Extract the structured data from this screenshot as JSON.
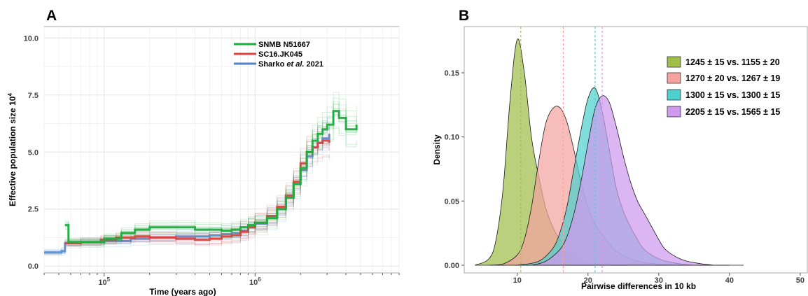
{
  "chart_data": [
    {
      "panel_label": "A",
      "type": "line",
      "xlabel": "Time (years ago)",
      "ylabel": "Effective population size 10",
      "ylabel_sup": "4",
      "xscale": "log",
      "xlim": [
        40000,
        9000000
      ],
      "ylim": [
        -0.3,
        10.5
      ],
      "x_ticks": [
        {
          "value": 100000,
          "base": "10",
          "exp": "5"
        },
        {
          "value": 1000000,
          "base": "10",
          "exp": "6"
        }
      ],
      "y_ticks": [
        "0.0",
        "2.5",
        "5.0",
        "7.5",
        "10.0"
      ],
      "y_tick_values": [
        0,
        2.5,
        5,
        7.5,
        10
      ],
      "grid": true,
      "legend_position": "top-center",
      "series": [
        {
          "name": "SNMB N51667",
          "color": "#1aae3e",
          "x": [
            55000,
            58000,
            95000,
            100000,
            130000,
            160000,
            200000,
            280000,
            400000,
            600000,
            700000,
            800000,
            900000,
            1000000,
            1200000,
            1400000,
            1600000,
            1800000,
            2000000,
            2200000,
            2400000,
            2600000,
            2800000,
            3000000,
            3300000,
            3600000,
            4000000,
            4700000
          ],
          "y": [
            1.8,
            1.05,
            1.05,
            1.2,
            1.45,
            1.6,
            1.7,
            1.7,
            1.6,
            1.55,
            1.6,
            1.7,
            1.8,
            1.9,
            2.1,
            2.5,
            3.0,
            3.6,
            4.3,
            5.0,
            5.5,
            5.8,
            6.0,
            6.2,
            6.8,
            6.5,
            6.0,
            6.2
          ]
        },
        {
          "name": "SC16.JK045",
          "color": "#e04040",
          "x": [
            55000,
            70000,
            95000,
            120000,
            160000,
            200000,
            300000,
            400000,
            500000,
            600000,
            700000,
            800000,
            900000,
            1000000,
            1200000,
            1400000,
            1600000,
            1800000,
            2000000,
            2200000,
            2400000,
            2600000,
            2800000,
            3100000
          ],
          "y": [
            1.0,
            1.05,
            1.15,
            1.25,
            1.3,
            1.25,
            1.2,
            1.15,
            1.2,
            1.3,
            1.35,
            1.5,
            1.7,
            1.9,
            2.2,
            2.6,
            3.1,
            3.7,
            4.5,
            5.0,
            5.2,
            5.4,
            5.5,
            5.4
          ]
        },
        {
          "name": "Sharko et al. 2021",
          "color": "#5b8fd6",
          "x": [
            40000,
            52000,
            55000,
            70000,
            100000,
            150000,
            200000,
            300000,
            400000,
            500000,
            600000,
            700000,
            800000,
            900000,
            1000000,
            1200000,
            1400000,
            1600000,
            1800000,
            2000000,
            2200000,
            2400000,
            2600000,
            2800000,
            3100000
          ],
          "y": [
            0.6,
            0.65,
            1.0,
            1.05,
            1.1,
            1.2,
            1.25,
            1.3,
            1.3,
            1.35,
            1.4,
            1.45,
            1.55,
            1.7,
            1.85,
            2.1,
            2.5,
            3.0,
            3.6,
            4.2,
            4.8,
            5.2,
            5.4,
            5.6,
            5.8
          ]
        }
      ]
    },
    {
      "panel_label": "B",
      "type": "area",
      "xlabel": "Pairwise differences in 10 kb",
      "ylabel": "Density",
      "xlim": [
        2.5,
        51
      ],
      "ylim": [
        -0.006,
        0.186
      ],
      "x_ticks": [
        "10",
        "20",
        "30",
        "40",
        "50"
      ],
      "x_tick_values": [
        10,
        20,
        30,
        40,
        50
      ],
      "y_ticks": [
        "0.00",
        "0.05",
        "0.10",
        "0.15"
      ],
      "y_tick_values": [
        0,
        0.05,
        0.1,
        0.15
      ],
      "grid": false,
      "legend_position": "top-right",
      "series": [
        {
          "name": "1245 ± 15 vs. 1155 ± 20",
          "color": "#9fbe4a",
          "mean": 10.5,
          "x": [
            4,
            6,
            7,
            8,
            9,
            10,
            11,
            12,
            13,
            14,
            15,
            16,
            17,
            18,
            19,
            20,
            22,
            24,
            26
          ],
          "y": [
            0,
            0.005,
            0.02,
            0.06,
            0.13,
            0.176,
            0.15,
            0.1,
            0.07,
            0.045,
            0.03,
            0.02,
            0.013,
            0.008,
            0.004,
            0.002,
            0.0005,
            0,
            0
          ]
        },
        {
          "name": "1270 ± 20 vs. 1267 ± 19",
          "color": "#f4a3a0",
          "mean": 16.5,
          "x": [
            6,
            8,
            10,
            11,
            12,
            13,
            14,
            15,
            16,
            17,
            18,
            19,
            20,
            21,
            22,
            23,
            24,
            26,
            28,
            30,
            33,
            36
          ],
          "y": [
            0,
            0.001,
            0.008,
            0.02,
            0.045,
            0.08,
            0.11,
            0.122,
            0.123,
            0.112,
            0.09,
            0.065,
            0.045,
            0.032,
            0.024,
            0.017,
            0.011,
            0.005,
            0.002,
            0.001,
            0,
            0
          ]
        },
        {
          "name": "1300 ± 15 vs. 1300 ± 15",
          "color": "#4dd0cf",
          "mean": 21,
          "x": [
            10,
            13,
            15,
            16,
            17,
            18,
            19,
            20,
            21,
            22,
            23,
            24,
            25,
            26,
            27,
            28,
            30,
            32,
            35,
            40
          ],
          "y": [
            0,
            0.003,
            0.013,
            0.025,
            0.045,
            0.075,
            0.105,
            0.13,
            0.138,
            0.12,
            0.09,
            0.06,
            0.042,
            0.03,
            0.02,
            0.012,
            0.005,
            0.002,
            0,
            0
          ]
        },
        {
          "name": "2205 ± 15 vs. 1565 ± 15",
          "color": "#cf99ee",
          "mean": 22,
          "x": [
            12,
            14,
            16,
            17,
            18,
            19,
            20,
            21,
            22,
            23,
            24,
            25,
            26,
            27,
            28,
            29,
            30,
            31,
            33,
            35,
            38,
            42
          ],
          "y": [
            0,
            0.003,
            0.012,
            0.022,
            0.04,
            0.065,
            0.095,
            0.122,
            0.132,
            0.127,
            0.108,
            0.085,
            0.065,
            0.05,
            0.04,
            0.03,
            0.02,
            0.012,
            0.005,
            0.002,
            0,
            0
          ]
        }
      ]
    }
  ]
}
